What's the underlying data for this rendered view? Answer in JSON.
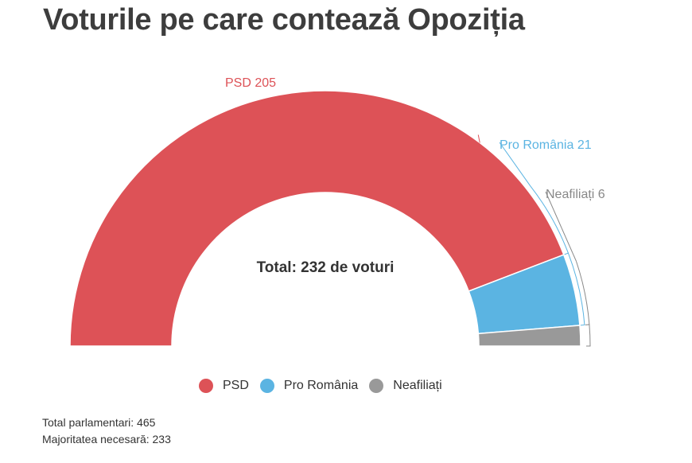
{
  "chart_data": {
    "type": "pie",
    "variant": "semi-donut",
    "title": "Voturile pe care contează Opoziția",
    "center_label": "Total: 232 de voturi",
    "categories": [
      "PSD",
      "Pro România",
      "Neafiliați"
    ],
    "values": [
      205,
      21,
      6
    ],
    "colors": [
      "#dd5257",
      "#5bb4e2",
      "#999999"
    ],
    "data_labels": [
      "PSD 205",
      "Pro România 21",
      "Neafiliați 6"
    ],
    "legend_position": "bottom"
  },
  "notes": {
    "total": "Total parlamentari:  465",
    "majority": "Majoritatea necesară: 233"
  }
}
